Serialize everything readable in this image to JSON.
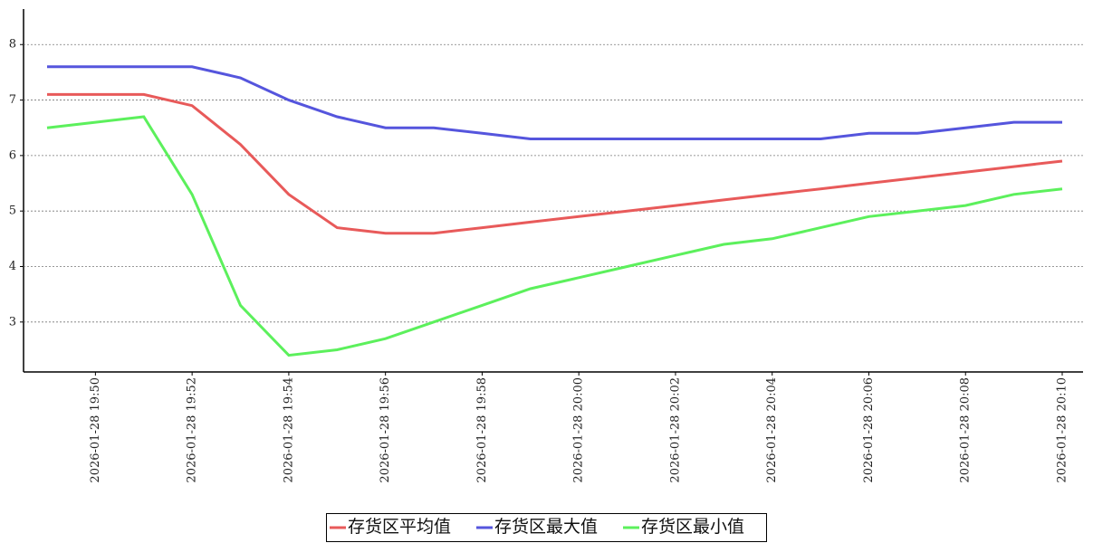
{
  "chart_data": {
    "type": "line",
    "x": [
      "2026-01-28 19:49",
      "2026-01-28 19:50",
      "2026-01-28 19:51",
      "2026-01-28 19:52",
      "2026-01-28 19:53",
      "2026-01-28 19:54",
      "2026-01-28 19:55",
      "2026-01-28 19:56",
      "2026-01-28 19:57",
      "2026-01-28 19:58",
      "2026-01-28 19:59",
      "2026-01-28 20:00",
      "2026-01-28 20:01",
      "2026-01-28 20:02",
      "2026-01-28 20:03",
      "2026-01-28 20:04",
      "2026-01-28 20:05",
      "2026-01-28 20:06",
      "2026-01-28 20:07",
      "2026-01-28 20:08",
      "2026-01-28 20:09",
      "2026-01-28 20:10"
    ],
    "xticks": [
      "2026-01-28 19:50",
      "2026-01-28 19:52",
      "2026-01-28 19:54",
      "2026-01-28 19:56",
      "2026-01-28 19:58",
      "2026-01-28 20:00",
      "2026-01-28 20:02",
      "2026-01-28 20:04",
      "2026-01-28 20:06",
      "2026-01-28 20:08",
      "2026-01-28 20:10"
    ],
    "series": [
      {
        "name": "存货区平均值",
        "color": "#e85a5a",
        "values": [
          7.1,
          7.1,
          7.1,
          6.9,
          6.2,
          5.3,
          4.7,
          4.6,
          4.6,
          4.7,
          4.8,
          4.9,
          5.0,
          5.1,
          5.2,
          5.3,
          5.4,
          5.5,
          5.6,
          5.7,
          5.8,
          5.9
        ]
      },
      {
        "name": "存货区最大值",
        "color": "#5555dd",
        "values": [
          7.6,
          7.6,
          7.6,
          7.6,
          7.4,
          7.0,
          6.7,
          6.5,
          6.5,
          6.4,
          6.3,
          6.3,
          6.3,
          6.3,
          6.3,
          6.3,
          6.3,
          6.4,
          6.4,
          6.5,
          6.6,
          6.6
        ]
      },
      {
        "name": "存货区最小值",
        "color": "#5cf05c",
        "values": [
          6.5,
          6.6,
          6.7,
          5.3,
          3.3,
          2.4,
          2.5,
          2.7,
          3.0,
          3.3,
          3.6,
          3.8,
          4.0,
          4.2,
          4.4,
          4.5,
          4.7,
          4.9,
          5.0,
          5.1,
          5.3,
          5.4
        ]
      }
    ],
    "ylim": [
      2.1,
      8.64
    ],
    "yticks": [
      3,
      4,
      5,
      6,
      7,
      8
    ],
    "grid": true,
    "legend": "bottom"
  }
}
